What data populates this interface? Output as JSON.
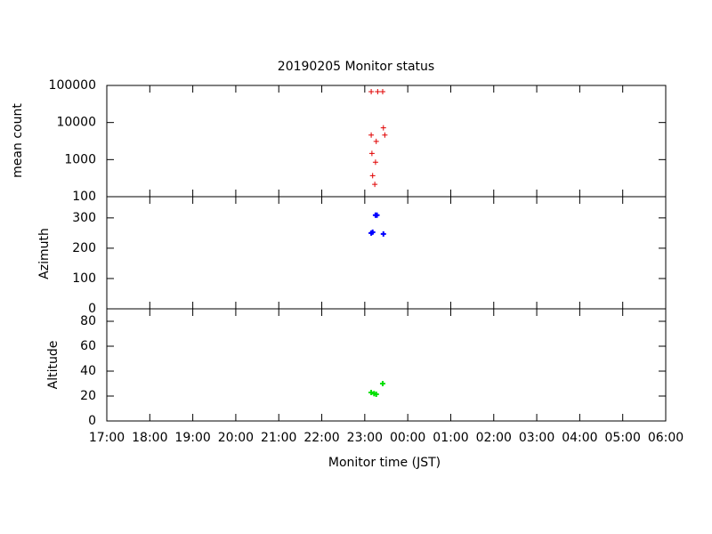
{
  "chart_data": [
    {
      "type": "scatter",
      "title": "20190205 Monitor status",
      "ylabel": "mean count",
      "log_y": true,
      "x": [
        "23:09",
        "23:18",
        "23:25",
        "23:26",
        "23:28",
        "23:09",
        "23:16",
        "23:10",
        "23:15",
        "23:11",
        "23:14"
      ],
      "y": [
        68000,
        68000,
        68000,
        7200,
        4600,
        4600,
        3100,
        1470,
        850,
        370,
        215
      ],
      "color": "#e00000",
      "xlim": [
        "17:00",
        "06:00"
      ],
      "ylim": [
        100,
        100000
      ],
      "yticks": [
        100,
        1000,
        10000,
        100000
      ]
    },
    {
      "type": "scatter",
      "ylabel": "Azimuth",
      "x": [
        "23:09",
        "23:11",
        "23:15",
        "23:17",
        "23:26"
      ],
      "y": [
        250,
        253,
        309,
        309,
        247
      ],
      "color": "#0000ff",
      "xlim": [
        "17:00",
        "06:00"
      ],
      "ylim": [
        0,
        370
      ],
      "yticks": [
        0,
        100,
        200,
        300
      ]
    },
    {
      "type": "scatter",
      "ylabel": "Altitude",
      "xlabel": "Monitor time (JST)",
      "x": [
        "23:09",
        "23:13",
        "23:16",
        "23:25"
      ],
      "y": [
        22.9,
        22,
        21.4,
        30
      ],
      "color": "#00e000",
      "xlim": [
        "17:00",
        "06:00"
      ],
      "ylim": [
        0,
        90
      ],
      "yticks": [
        0,
        20,
        40,
        60,
        80
      ],
      "xticks": [
        "17:00",
        "18:00",
        "19:00",
        "20:00",
        "21:00",
        "22:00",
        "23:00",
        "00:00",
        "01:00",
        "02:00",
        "03:00",
        "04:00",
        "05:00",
        "06:00"
      ]
    }
  ]
}
